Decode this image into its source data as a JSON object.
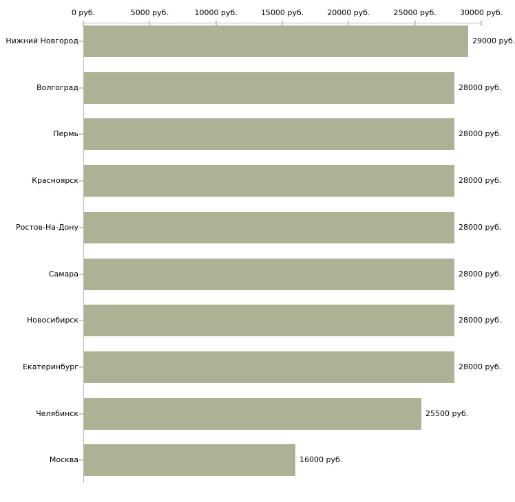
{
  "chart_data": {
    "type": "bar",
    "orientation": "horizontal",
    "title": "",
    "xlabel": "",
    "ylabel": "",
    "categories": [
      "Нижний Новгород",
      "Волгоград",
      "Пермь",
      "Красноярск",
      "Ростов-На-Дону",
      "Самара",
      "Новосибирск",
      "Екатеринбург",
      "Челябинск",
      "Москва"
    ],
    "values": [
      29000,
      28000,
      28000,
      28000,
      28000,
      28000,
      28000,
      28000,
      25500,
      16000
    ],
    "value_labels": [
      "29000 руб.",
      "28000 руб.",
      "28000 руб.",
      "28000 руб.",
      "28000 руб.",
      "28000 руб.",
      "28000 руб.",
      "28000 руб.",
      "25500 руб.",
      "16000 руб."
    ],
    "x_axis": {
      "position": "top",
      "min": 0,
      "max": 30000,
      "tick_values": [
        0,
        5000,
        10000,
        15000,
        20000,
        25000,
        30000
      ],
      "tick_labels": [
        "0 руб.",
        "5000 руб.",
        "10000 руб.",
        "15000 руб.",
        "20000 руб.",
        "25000 руб.",
        "30000 руб."
      ]
    },
    "grid": false,
    "legend": false,
    "colors": {
      "bar": "#adb296",
      "axis": "#b9b9b9",
      "tick": "#c9cbaa",
      "text": "#000000",
      "background": "#ffffff"
    }
  }
}
